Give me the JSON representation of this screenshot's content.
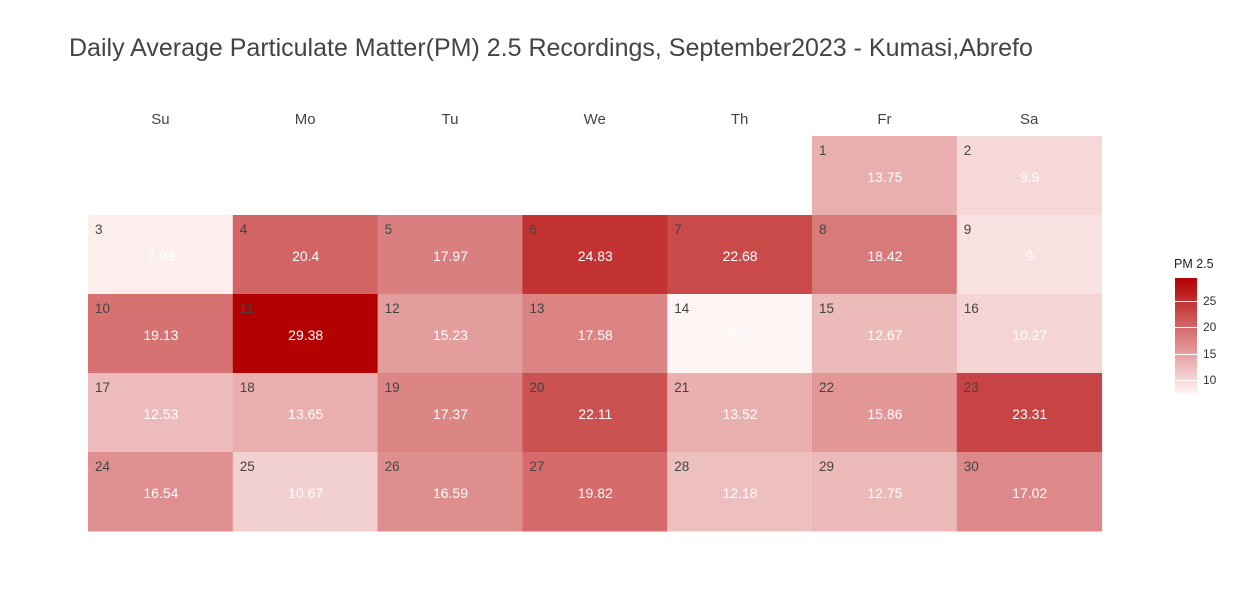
{
  "chart_data": {
    "type": "heatmap",
    "title": "Daily Average Particulate Matter(PM) 2.5 Recordings, September2023 - Kumasi,Abrefo",
    "weekdays": [
      "Su",
      "Mo",
      "Tu",
      "We",
      "Th",
      "Fr",
      "Sa"
    ],
    "first_weekday_index": 5,
    "days": [
      1,
      2,
      3,
      4,
      5,
      6,
      7,
      8,
      9,
      10,
      11,
      12,
      13,
      14,
      15,
      16,
      17,
      18,
      19,
      20,
      21,
      22,
      23,
      24,
      25,
      26,
      27,
      28,
      29,
      30
    ],
    "values": [
      13.75,
      9.9,
      7.93,
      20.4,
      17.97,
      24.83,
      22.68,
      18.42,
      9,
      19.13,
      29.38,
      15.23,
      17.58,
      7.33,
      12.67,
      10.27,
      12.53,
      13.65,
      17.37,
      22.11,
      13.52,
      15.86,
      23.31,
      16.54,
      10.67,
      16.59,
      19.82,
      12.18,
      12.75,
      17.02
    ],
    "legend": {
      "title": "PM 2.5",
      "min": 7.33,
      "max": 29.38,
      "ticks": [
        10,
        15,
        20,
        25
      ],
      "low_color": "#fff5f5",
      "high_color": "#b30000"
    }
  }
}
